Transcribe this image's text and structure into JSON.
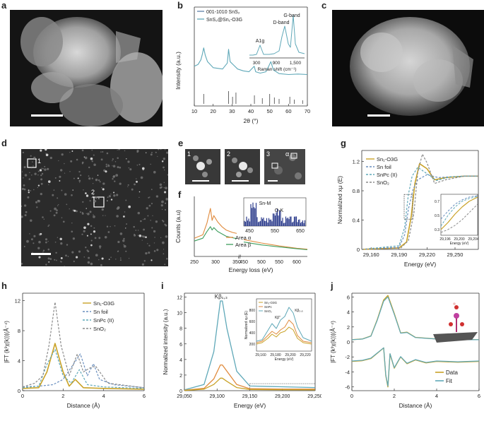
{
  "panel_labels": {
    "a": "a",
    "b": "b",
    "c": "c",
    "d": "d",
    "e": "e",
    "f": "f",
    "g": "g",
    "h": "h",
    "i": "i",
    "j": "j"
  },
  "colors": {
    "gold": "#c9a227",
    "blue": "#6a8fbf",
    "teal": "#5fa8b8",
    "green": "#3e9e5e",
    "orange": "#e08a3c",
    "gray": "#8a8a8a",
    "navy": "#2b3b8c",
    "steel": "#5c7fa8"
  },
  "panel_e": {
    "labels": [
      "1",
      "2",
      "3"
    ],
    "alpha": "α"
  },
  "panel_d": {
    "labels": [
      "1",
      "2"
    ]
  },
  "chart_data": [
    {
      "id": "b",
      "type": "line",
      "xlabel": "2θ (°)",
      "ylabel": "Intensity (a.u.)",
      "xlim": [
        10,
        70
      ],
      "xticks": [
        10,
        20,
        30,
        40,
        50,
        60,
        70
      ],
      "legend": [
        "001-1010 SnS₂",
        "SnS₂@Sn₁-O3G"
      ],
      "reference_peaks": [
        15,
        28.2,
        30.3,
        32.1,
        41.9,
        46.1,
        50,
        52.5,
        55,
        60.7,
        63.1,
        67.5
      ],
      "series": [
        {
          "name": "SnS₂@Sn₁-O3G",
          "x": [
            10,
            12,
            13.5,
            14.3,
            15,
            15.8,
            17,
            20,
            25,
            27.5,
            28.2,
            29,
            31,
            33,
            36,
            39,
            41.8,
            42.6,
            45,
            48,
            49.5,
            50.6,
            52,
            55,
            60,
            65,
            70
          ],
          "y": [
            0.48,
            0.52,
            0.62,
            0.75,
            0.88,
            0.72,
            0.58,
            0.45,
            0.42,
            0.55,
            0.85,
            0.58,
            0.5,
            0.42,
            0.38,
            0.36,
            0.48,
            0.36,
            0.33,
            0.36,
            0.48,
            0.58,
            0.4,
            0.32,
            0.3,
            0.31,
            0.3
          ]
        }
      ],
      "inset": {
        "xlabel": "Raman shift (cm⁻¹)",
        "xticks": [
          "300",
          "900",
          "1,500"
        ],
        "annotations": {
          "a1g": "A1g",
          "d": "D-band",
          "g": "G-band"
        }
      }
    },
    {
      "id": "f",
      "type": "line",
      "xlabel": "Energy loss (eV)",
      "ylabel": "Counts (a.u)",
      "xticks": [
        "250",
        "300",
        "350",
        "450",
        "500",
        "550",
        "600"
      ],
      "legend": [
        "Area α",
        "Area β"
      ],
      "series": [
        {
          "name": "Area α",
          "x": [
            250,
            270,
            280,
            288,
            292,
            296,
            305,
            315,
            325,
            340,
            350,
            450,
            500,
            550,
            600,
            630
          ],
          "y": [
            0.38,
            0.45,
            0.7,
            1.0,
            0.75,
            0.85,
            0.72,
            0.62,
            0.55,
            0.5,
            0.48,
            0.35,
            0.28,
            0.22,
            0.17,
            0.15
          ]
        },
        {
          "name": "Area β",
          "x": [
            250,
            270,
            280,
            288,
            292,
            296,
            305,
            315,
            325,
            340,
            350,
            450,
            500,
            550,
            600,
            630
          ],
          "y": [
            0.32,
            0.38,
            0.52,
            0.62,
            0.55,
            0.6,
            0.52,
            0.47,
            0.42,
            0.39,
            0.37,
            0.3,
            0.24,
            0.2,
            0.16,
            0.14
          ]
        }
      ],
      "inset": {
        "xticks": [
          "450",
          "550",
          "650"
        ],
        "annotations": {
          "snm": "Sn-M",
          "ok": "O-K"
        }
      }
    },
    {
      "id": "g",
      "type": "line",
      "xlabel": "Energy (eV)",
      "ylabel": "Normalized xμ (E)",
      "xlim": [
        29150,
        29275
      ],
      "ylim": [
        0,
        1.35
      ],
      "xticks": [
        "29,160",
        "29,190",
        "29,220",
        "29,250"
      ],
      "yticks": [
        "0",
        "0.4",
        "0.8",
        "1.2"
      ],
      "legend": [
        "Sn₁-O3G",
        "Sn foil",
        "SnPc (II)",
        "SnO₂"
      ],
      "series": [
        {
          "name": "Sn₁-O3G",
          "x": [
            29150,
            29190,
            29198,
            29203,
            29207,
            29212,
            29220,
            29228,
            29240,
            29260,
            29275
          ],
          "y": [
            0,
            0.02,
            0.1,
            0.45,
            0.9,
            1.17,
            1.1,
            0.95,
            0.98,
            1.0,
            1.0
          ]
        },
        {
          "name": "Sn foil",
          "x": [
            29150,
            29190,
            29196,
            29200,
            29205,
            29210,
            29220,
            29232,
            29245,
            29260,
            29275
          ],
          "y": [
            0,
            0.03,
            0.2,
            0.55,
            0.82,
            0.95,
            1.02,
            0.98,
            0.99,
            1.0,
            1.0
          ]
        },
        {
          "name": "SnPc (II)",
          "x": [
            29150,
            29190,
            29196,
            29200,
            29204,
            29210,
            29218,
            29230,
            29245,
            29260,
            29275
          ],
          "y": [
            0,
            0.05,
            0.3,
            0.75,
            1.0,
            1.12,
            1.05,
            0.94,
            0.99,
            1.0,
            1.0
          ]
        },
        {
          "name": "SnO₂",
          "x": [
            29150,
            29192,
            29200,
            29206,
            29210,
            29215,
            29220,
            29228,
            29240,
            29260,
            29275
          ],
          "y": [
            0,
            0.02,
            0.12,
            0.5,
            1.05,
            1.3,
            1.18,
            0.9,
            0.95,
            1.0,
            1.0
          ]
        }
      ],
      "inset": {
        "xlabel": "Energy (eV)",
        "ylabel": "Normalized xμ (E)",
        "xticks": [
          "29,196",
          "29,200",
          "29,204"
        ],
        "yticks": [
          "0.3",
          "0.5",
          "0.7"
        ]
      }
    },
    {
      "id": "h",
      "type": "line",
      "xlabel": "Distance (Å)",
      "ylabel": "|FT (k³χ(k))|(Å⁻⁴)",
      "xlim": [
        0,
        6
      ],
      "ylim": [
        0,
        13
      ],
      "xticks": [
        "0",
        "2",
        "4",
        "6"
      ],
      "yticks": [
        "0",
        "4",
        "8",
        "12"
      ],
      "legend": [
        "Sn₁-O3G",
        "Sn foil",
        "SnPc (II)",
        "SnO₂"
      ],
      "series": [
        {
          "name": "Sn₁-O3G",
          "x": [
            0,
            0.8,
            1.2,
            1.6,
            2.0,
            2.3,
            2.6,
            3.0,
            4,
            6
          ],
          "y": [
            0.3,
            0.4,
            2.5,
            6.3,
            2.5,
            0.6,
            1.5,
            0.4,
            0.3,
            0.2
          ]
        },
        {
          "name": "Sn foil",
          "x": [
            0,
            0.8,
            1.5,
            2.0,
            2.5,
            2.85,
            3.2,
            3.5,
            3.8,
            4.5,
            6
          ],
          "y": [
            0.5,
            0.6,
            0.8,
            1.5,
            3.5,
            4.9,
            2.0,
            3.6,
            1.5,
            0.8,
            0.4
          ]
        },
        {
          "name": "SnPc (II)",
          "x": [
            0,
            0.8,
            1.2,
            1.6,
            2.0,
            2.4,
            2.8,
            3.2,
            4,
            6
          ],
          "y": [
            0.4,
            0.6,
            3.5,
            5.5,
            2.0,
            1.0,
            2.8,
            0.8,
            0.5,
            0.3
          ]
        },
        {
          "name": "SnO₂",
          "x": [
            0,
            0.6,
            1.0,
            1.3,
            1.6,
            1.9,
            2.3,
            2.7,
            3.0,
            3.3,
            3.6,
            4.2,
            6
          ],
          "y": [
            0.5,
            1.0,
            2.0,
            6.0,
            11.8,
            6.0,
            2.0,
            4.9,
            2.5,
            3.0,
            3.3,
            1.0,
            0.4
          ]
        }
      ]
    },
    {
      "id": "i",
      "type": "line",
      "xlabel": "Energy (eV)",
      "ylabel": "Normalized intensity (a.u.)",
      "xlim": [
        29050,
        29250
      ],
      "ylim": [
        0,
        12.5
      ],
      "xticks": [
        "29,050",
        "29,100",
        "29,150",
        "29,200",
        "29,250"
      ],
      "yticks": [
        "0",
        "2",
        "4",
        "6",
        "8",
        "10",
        "12"
      ],
      "peak_label": "Kβ₁,₃",
      "series": [
        {
          "name": "SnO₂",
          "x": [
            29050,
            29080,
            29095,
            29105,
            29108,
            29115,
            29130,
            29150,
            29200,
            29250
          ],
          "y": [
            0.1,
            0.8,
            5,
            11.5,
            11.5,
            8,
            2.5,
            0.6,
            0.5,
            0.4
          ]
        },
        {
          "name": "SnPc",
          "x": [
            29050,
            29080,
            29095,
            29105,
            29108,
            29115,
            29130,
            29150,
            29200,
            29250
          ],
          "y": [
            0.05,
            0.3,
            1.5,
            3.3,
            3.3,
            2.5,
            0.8,
            0.25,
            0.2,
            0.2
          ]
        },
        {
          "name": "Sn₁-O3G",
          "x": [
            29050,
            29080,
            29095,
            29105,
            29108,
            29115,
            29130,
            29150,
            29200,
            29250
          ],
          "y": [
            0.03,
            0.2,
            0.8,
            1.6,
            1.6,
            1.2,
            0.4,
            0.15,
            0.12,
            0.1
          ]
        }
      ],
      "inset": {
        "legend": [
          "Sn₁-O3G",
          "SnPc",
          "SnO₂"
        ],
        "xlabel": "Energy (eV)",
        "ylabel": "Normalized xμ (E)",
        "xticks": [
          "29,160",
          "29,180",
          "29,200",
          "29,220"
        ],
        "yticks": [
          "200",
          "400",
          "600",
          "800"
        ],
        "annotations": {
          "kb2": "Kβ''",
          "kb25": "Kβ₂,₅"
        }
      }
    },
    {
      "id": "j",
      "type": "line",
      "xlabel": "Distance (Å)",
      "ylabel": "|FT (k³χ(k))|(Å⁻⁴)",
      "xlim": [
        0,
        6
      ],
      "ylim": [
        -6.5,
        6.5
      ],
      "xticks": [
        "0",
        "2",
        "4",
        "6"
      ],
      "yticks": [
        "-6",
        "-4",
        "-2",
        "0",
        "2",
        "4",
        "6"
      ],
      "legend": [
        "Data",
        "Fit"
      ]
    }
  ]
}
